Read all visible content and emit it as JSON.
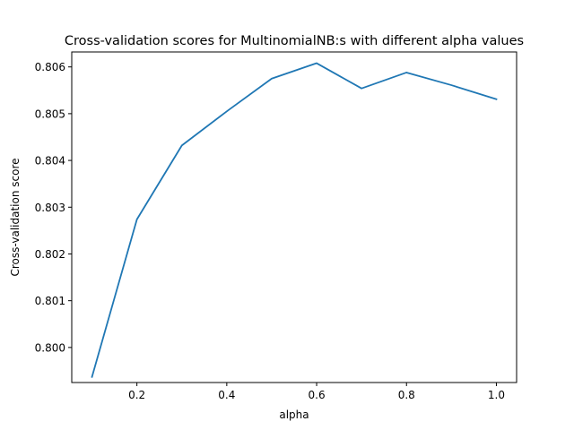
{
  "chart_data": {
    "type": "line",
    "title": "Cross-validation scores for MultinomialNB:s with different alpha values",
    "xlabel": "alpha",
    "ylabel": "Cross-validation score",
    "xlim": [
      0.055,
      1.045
    ],
    "ylim": [
      0.79925,
      0.80632
    ],
    "xticks": [
      0.2,
      0.4,
      0.6,
      0.8,
      1.0
    ],
    "xtick_labels": [
      "0.2",
      "0.4",
      "0.6",
      "0.8",
      "1.0"
    ],
    "yticks": [
      0.8,
      0.801,
      0.802,
      0.803,
      0.804,
      0.805,
      0.806
    ],
    "ytick_labels": [
      "0.800",
      "0.801",
      "0.802",
      "0.803",
      "0.804",
      "0.805",
      "0.806"
    ],
    "grid": false,
    "series": [
      {
        "color": "#1f77b4",
        "x": [
          0.1,
          0.2,
          0.3,
          0.4,
          0.5,
          0.6,
          0.7,
          0.8,
          0.9,
          1.0
        ],
        "y": [
          0.79937,
          0.80274,
          0.80432,
          0.80505,
          0.80575,
          0.80608,
          0.80554,
          0.80588,
          0.80561,
          0.80531
        ]
      }
    ]
  }
}
